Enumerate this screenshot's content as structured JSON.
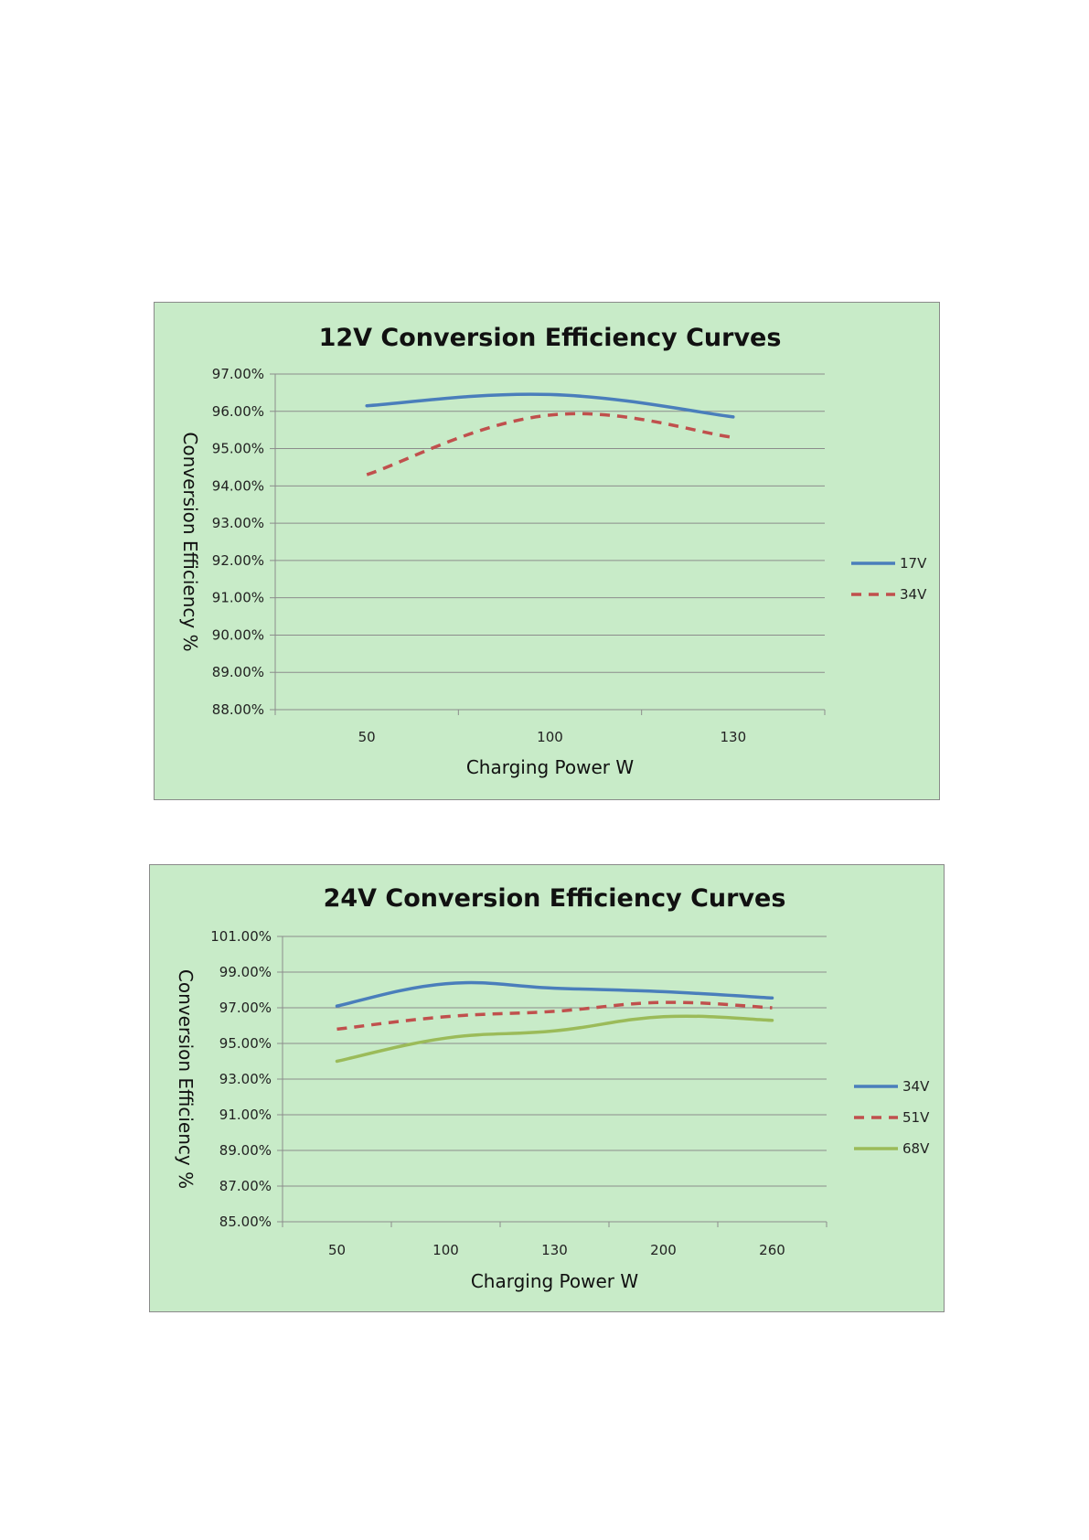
{
  "chart_data": [
    {
      "type": "line",
      "title": "12V Conversion Efficiency Curves",
      "xlabel": "Charging Power W",
      "ylabel": "Conversion Efficiency %",
      "categories": [
        "50",
        "100",
        "130"
      ],
      "y_ticks": [
        "88.00%",
        "89.00%",
        "90.00%",
        "91.00%",
        "92.00%",
        "93.00%",
        "94.00%",
        "95.00%",
        "96.00%",
        "97.00%"
      ],
      "ylim": [
        88,
        97
      ],
      "grid": true,
      "legend_position": "right",
      "series": [
        {
          "name": "17V",
          "values": [
            96.15,
            96.45,
            95.85
          ],
          "color": "#4a7ebb",
          "dash": "solid"
        },
        {
          "name": "34V",
          "values": [
            94.3,
            95.9,
            95.3
          ],
          "color": "#c0504d",
          "dash": "dashed"
        }
      ]
    },
    {
      "type": "line",
      "title": "24V Conversion Efficiency Curves",
      "xlabel": "Charging Power W",
      "ylabel": "Conversion Efficiency %",
      "categories": [
        "50",
        "100",
        "130",
        "200",
        "260"
      ],
      "y_ticks": [
        "85.00%",
        "87.00%",
        "89.00%",
        "91.00%",
        "93.00%",
        "95.00%",
        "97.00%",
        "99.00%",
        "101.00%"
      ],
      "ylim": [
        85,
        101
      ],
      "grid": true,
      "legend_position": "right",
      "series": [
        {
          "name": "34V",
          "values": [
            97.1,
            98.35,
            98.1,
            97.9,
            97.55
          ],
          "color": "#4a7ebb",
          "dash": "solid"
        },
        {
          "name": "51V",
          "values": [
            95.8,
            96.5,
            96.8,
            97.3,
            97.0
          ],
          "color": "#c0504d",
          "dash": "dashed"
        },
        {
          "name": "68V",
          "values": [
            94.0,
            95.3,
            95.7,
            96.5,
            96.3
          ],
          "color": "#9bbb59",
          "dash": "solid"
        }
      ]
    }
  ]
}
